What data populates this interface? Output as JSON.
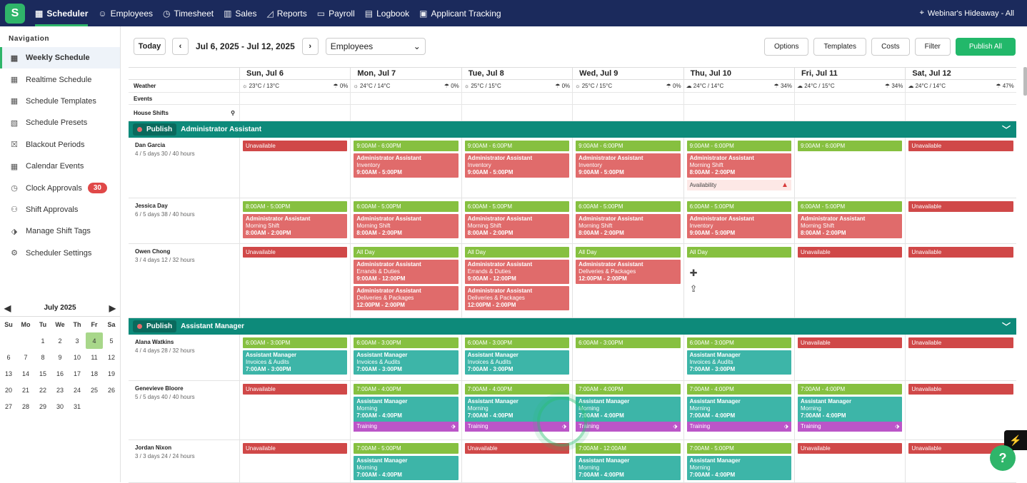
{
  "topnav": {
    "items": [
      {
        "label": "Scheduler",
        "icon": "calendar-icon",
        "active": true
      },
      {
        "label": "Employees",
        "icon": "people-icon"
      },
      {
        "label": "Timesheet",
        "icon": "clock-icon"
      },
      {
        "label": "Sales",
        "icon": "store-icon"
      },
      {
        "label": "Reports",
        "icon": "chart-icon"
      },
      {
        "label": "Payroll",
        "icon": "money-icon"
      },
      {
        "label": "Logbook",
        "icon": "book-icon"
      },
      {
        "label": "Applicant Tracking",
        "icon": "clipboard-icon"
      }
    ],
    "location": "Webinar's Hideaway - All"
  },
  "sidebar": {
    "heading": "Navigation",
    "items": [
      {
        "label": "Weekly Schedule",
        "active": true
      },
      {
        "label": "Realtime Schedule"
      },
      {
        "label": "Schedule Templates"
      },
      {
        "label": "Schedule Presets"
      },
      {
        "label": "Blackout Periods"
      },
      {
        "label": "Calendar Events"
      },
      {
        "label": "Clock Approvals",
        "badge": "30"
      },
      {
        "label": "Shift Approvals"
      },
      {
        "label": "Manage Shift Tags"
      },
      {
        "label": "Scheduler Settings"
      }
    ]
  },
  "calendar": {
    "month": "July 2025",
    "dow": [
      "Su",
      "Mo",
      "Tu",
      "We",
      "Th",
      "Fr",
      "Sa"
    ],
    "lead_blanks": 2,
    "days": 31,
    "selected": 4
  },
  "toolbar": {
    "today": "Today",
    "range": "Jul 6, 2025 - Jul 12, 2025",
    "view": "Employees",
    "buttons": [
      "Options",
      "Templates",
      "Costs",
      "Filter"
    ],
    "publish": "Publish All"
  },
  "days": [
    "Sun, Jul 6",
    "Mon, Jul 7",
    "Tue, Jul 8",
    "Wed, Jul 9",
    "Thu, Jul 10",
    "Fri, Jul 11",
    "Sat, Jul 12"
  ],
  "weather": {
    "label": "Weather",
    "cells": [
      {
        "temp": "23°C / 13°C",
        "rain": "0%",
        "icon": "sun-icon"
      },
      {
        "temp": "24°C / 14°C",
        "rain": "0%",
        "icon": "sun-icon"
      },
      {
        "temp": "25°C / 15°C",
        "rain": "0%",
        "icon": "sun-icon"
      },
      {
        "temp": "25°C / 15°C",
        "rain": "0%",
        "icon": "sun-icon"
      },
      {
        "temp": "24°C / 14°C",
        "rain": "34%",
        "icon": "cloud-icon"
      },
      {
        "temp": "24°C / 15°C",
        "rain": "34%",
        "icon": "cloud-icon"
      },
      {
        "temp": "24°C / 14°C",
        "rain": "47%",
        "icon": "cloud-icon"
      }
    ]
  },
  "events_label": "Events",
  "house_label": "House Shifts",
  "groups": [
    {
      "publish": "Publish",
      "title": "Administrator Assistant",
      "rows": [
        {
          "name": "Dan Garcia",
          "stats": "4 / 5 days    30 / 40 hours",
          "h": 85,
          "cells": [
            [
              {
                "k": "un",
                "a": "Unavailable"
              }
            ],
            [
              {
                "k": "avail",
                "a": "9:00AM - 6:00PM"
              },
              {
                "k": "red",
                "a": "Administrator Assistant",
                "b": "Inventory",
                "c": "9:00AM - 5:00PM"
              }
            ],
            [
              {
                "k": "avail",
                "a": "9:00AM - 6:00PM"
              },
              {
                "k": "red",
                "a": "Administrator Assistant",
                "b": "Inventory",
                "c": "9:00AM - 5:00PM"
              }
            ],
            [
              {
                "k": "avail",
                "a": "9:00AM - 6:00PM"
              },
              {
                "k": "red",
                "a": "Administrator Assistant",
                "b": "Inventory",
                "c": "9:00AM - 5:00PM"
              }
            ],
            [
              {
                "k": "avail",
                "a": "9:00AM - 6:00PM"
              },
              {
                "k": "red",
                "a": "Administrator Assistant",
                "b": "Morning Shift",
                "c": "8:00AM - 2:00PM"
              },
              {
                "k": "warn",
                "a": "Availability"
              }
            ],
            [
              {
                "k": "avail",
                "a": "9:00AM - 6:00PM"
              }
            ],
            [
              {
                "k": "un",
                "a": "Unavailable"
              }
            ]
          ]
        },
        {
          "name": "Jessica Day",
          "stats": "6 / 5 days    38 / 40 hours",
          "h": 64,
          "cells": [
            [
              {
                "k": "avail",
                "a": "8:00AM - 5:00PM"
              },
              {
                "k": "red",
                "a": "Administrator Assistant",
                "b": "Morning Shift",
                "c": "8:00AM - 2:00PM"
              }
            ],
            [
              {
                "k": "avail",
                "a": "6:00AM - 5:00PM"
              },
              {
                "k": "red",
                "a": "Administrator Assistant",
                "b": "Morning Shift",
                "c": "8:00AM - 2:00PM"
              }
            ],
            [
              {
                "k": "avail",
                "a": "6:00AM - 5:00PM"
              },
              {
                "k": "red",
                "a": "Administrator Assistant",
                "b": "Morning Shift",
                "c": "8:00AM - 2:00PM"
              }
            ],
            [
              {
                "k": "avail",
                "a": "6:00AM - 5:00PM"
              },
              {
                "k": "red",
                "a": "Administrator Assistant",
                "b": "Morning Shift",
                "c": "8:00AM - 2:00PM"
              }
            ],
            [
              {
                "k": "avail",
                "a": "6:00AM - 5:00PM"
              },
              {
                "k": "red",
                "a": "Administrator Assistant",
                "b": "Inventory",
                "c": "9:00AM - 5:00PM"
              }
            ],
            [
              {
                "k": "avail",
                "a": "6:00AM - 5:00PM"
              },
              {
                "k": "red",
                "a": "Administrator Assistant",
                "b": "Morning Shift",
                "c": "8:00AM - 2:00PM"
              }
            ],
            [
              {
                "k": "un",
                "a": "Unavailable"
              }
            ]
          ]
        },
        {
          "name": "Owen Chong",
          "stats": "3 / 4 days    12 / 32 hours",
          "h": 104,
          "cells": [
            [
              {
                "k": "un",
                "a": "Unavailable"
              }
            ],
            [
              {
                "k": "avail",
                "a": "All Day"
              },
              {
                "k": "red",
                "a": "Administrator Assistant",
                "b": "Errands & Duties",
                "c": "9:00AM - 12:00PM"
              },
              {
                "k": "red",
                "a": "Administrator Assistant",
                "b": "Deliveries & Packages",
                "c": "12:00PM - 2:00PM"
              }
            ],
            [
              {
                "k": "avail",
                "a": "All Day"
              },
              {
                "k": "red",
                "a": "Administrator Assistant",
                "b": "Errands & Duties",
                "c": "9:00AM - 12:00PM"
              },
              {
                "k": "red",
                "a": "Administrator Assistant",
                "b": "Deliveries & Packages",
                "c": "12:00PM - 2:00PM"
              }
            ],
            [
              {
                "k": "avail",
                "a": "All Day"
              },
              {
                "k": "red",
                "a": "Administrator Assistant",
                "b": "Deliveries & Packages",
                "c": "12:00PM - 2:00PM"
              }
            ],
            [
              {
                "k": "avail",
                "a": "All Day"
              }
            ],
            [
              {
                "k": "un",
                "a": "Unavailable"
              }
            ],
            [
              {
                "k": "un",
                "a": "Unavailable"
              }
            ]
          ]
        }
      ]
    },
    {
      "publish": "Publish",
      "title": "Assistant Manager",
      "rows": [
        {
          "name": "Alana Watkins",
          "stats": "4 / 4 days    28 / 32 hours",
          "h": 65,
          "cells": [
            [
              {
                "k": "avail",
                "a": "6:00AM - 3:00PM"
              },
              {
                "k": "teal",
                "a": "Assistant Manager",
                "b": "Invoices & Audits",
                "c": "7:00AM - 3:00PM"
              }
            ],
            [
              {
                "k": "avail",
                "a": "6:00AM - 3:00PM"
              },
              {
                "k": "teal",
                "a": "Assistant Manager",
                "b": "Invoices & Audits",
                "c": "7:00AM - 3:00PM"
              }
            ],
            [
              {
                "k": "avail",
                "a": "6:00AM - 3:00PM"
              },
              {
                "k": "teal",
                "a": "Assistant Manager",
                "b": "Invoices & Audits",
                "c": "7:00AM - 3:00PM"
              }
            ],
            [
              {
                "k": "avail",
                "a": "6:00AM - 3:00PM"
              }
            ],
            [
              {
                "k": "avail",
                "a": "6:00AM - 3:00PM"
              },
              {
                "k": "teal",
                "a": "Assistant Manager",
                "b": "Invoices & Audits",
                "c": "7:00AM - 3:00PM"
              }
            ],
            [
              {
                "k": "un",
                "a": "Unavailable"
              }
            ],
            [
              {
                "k": "un",
                "a": "Unavailable"
              }
            ]
          ]
        },
        {
          "name": "Genevieve Bloore",
          "stats": "5 / 5 days    40 / 40 hours",
          "h": 83,
          "cells": [
            [
              {
                "k": "un",
                "a": "Unavailable"
              }
            ],
            [
              {
                "k": "avail",
                "a": "7:00AM - 4:00PM"
              },
              {
                "k": "teal",
                "a": "Assistant Manager",
                "b": "Morning",
                "c": "7:00AM - 4:00PM",
                "tag": "Training"
              }
            ],
            [
              {
                "k": "avail",
                "a": "7:00AM - 4:00PM"
              },
              {
                "k": "teal",
                "a": "Assistant Manager",
                "b": "Morning",
                "c": "7:00AM - 4:00PM",
                "tag": "Training"
              }
            ],
            [
              {
                "k": "avail",
                "a": "7:00AM - 4:00PM"
              },
              {
                "k": "teal",
                "a": "Assistant Manager",
                "b": "Morning",
                "c": "7:00AM - 4:00PM",
                "tag": "Training"
              }
            ],
            [
              {
                "k": "avail",
                "a": "7:00AM - 4:00PM"
              },
              {
                "k": "teal",
                "a": "Assistant Manager",
                "b": "Morning",
                "c": "7:00AM - 4:00PM",
                "tag": "Training"
              }
            ],
            [
              {
                "k": "avail",
                "a": "7:00AM - 4:00PM"
              },
              {
                "k": "teal",
                "a": "Assistant Manager",
                "b": "Morning",
                "c": "7:00AM - 4:00PM",
                "tag": "Training"
              }
            ],
            [
              {
                "k": "un",
                "a": "Unavailable"
              }
            ]
          ]
        },
        {
          "name": "Jordan Nixon",
          "stats": "3 / 3 days    24 / 24 hours",
          "h": 60,
          "cells": [
            [
              {
                "k": "un",
                "a": "Unavailable"
              }
            ],
            [
              {
                "k": "avail",
                "a": "7:00AM - 5:00PM"
              },
              {
                "k": "teal",
                "a": "Assistant Manager",
                "b": "Morning",
                "c": "7:00AM - 4:00PM"
              }
            ],
            [
              {
                "k": "un",
                "a": "Unavailable"
              }
            ],
            [
              {
                "k": "avail",
                "a": "7:00AM - 12:00AM"
              },
              {
                "k": "teal",
                "a": "Assistant Manager",
                "b": "Morning",
                "c": "7:00AM - 4:00PM"
              }
            ],
            [
              {
                "k": "avail",
                "a": "7:00AM - 5:00PM"
              },
              {
                "k": "teal",
                "a": "Assistant Manager",
                "b": "Morning",
                "c": "7:00AM - 4:00PM"
              }
            ],
            [
              {
                "k": "un",
                "a": "Unavailable"
              }
            ],
            [
              {
                "k": "un",
                "a": "Unavailable"
              }
            ]
          ]
        }
      ]
    }
  ]
}
